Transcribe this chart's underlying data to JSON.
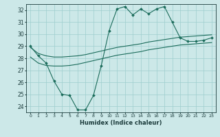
{
  "xlabel": "Humidex (Indice chaleur)",
  "ylabel": "",
  "background_color": "#cce8e8",
  "line_color": "#1a6b5a",
  "xlim": [
    -0.5,
    23.5
  ],
  "ylim": [
    23.5,
    32.5
  ],
  "xticks": [
    0,
    1,
    2,
    3,
    4,
    5,
    6,
    7,
    8,
    9,
    10,
    11,
    12,
    13,
    14,
    15,
    16,
    17,
    18,
    19,
    20,
    21,
    22,
    23
  ],
  "yticks": [
    24,
    25,
    26,
    27,
    28,
    29,
    30,
    31,
    32
  ],
  "line1_x": [
    0,
    1,
    2,
    3,
    4,
    5,
    6,
    7,
    8,
    9,
    10,
    11,
    12,
    13,
    14,
    15,
    16,
    17,
    18,
    19,
    20,
    21,
    22,
    23
  ],
  "line1_y": [
    29.0,
    28.2,
    27.6,
    26.1,
    25.0,
    24.9,
    23.7,
    23.7,
    24.9,
    27.4,
    30.3,
    32.1,
    32.3,
    31.6,
    32.1,
    31.7,
    32.1,
    32.3,
    31.0,
    29.7,
    29.4,
    29.4,
    29.5,
    29.7
  ],
  "line2_x": [
    0,
    1,
    2,
    3,
    4,
    5,
    6,
    7,
    8,
    9,
    10,
    11,
    12,
    13,
    14,
    15,
    16,
    17,
    18,
    19,
    20,
    21,
    22,
    23
  ],
  "line2_y": [
    28.9,
    28.4,
    28.2,
    28.1,
    28.1,
    28.15,
    28.2,
    28.3,
    28.45,
    28.6,
    28.75,
    28.9,
    29.0,
    29.1,
    29.2,
    29.35,
    29.45,
    29.55,
    29.65,
    29.75,
    29.8,
    29.85,
    29.9,
    29.95
  ],
  "line3_x": [
    0,
    1,
    2,
    3,
    4,
    5,
    6,
    7,
    8,
    9,
    10,
    11,
    12,
    13,
    14,
    15,
    16,
    17,
    18,
    19,
    20,
    21,
    22,
    23
  ],
  "line3_y": [
    28.1,
    27.6,
    27.4,
    27.35,
    27.35,
    27.4,
    27.5,
    27.65,
    27.8,
    27.95,
    28.1,
    28.25,
    28.35,
    28.45,
    28.55,
    28.7,
    28.8,
    28.9,
    29.0,
    29.1,
    29.15,
    29.2,
    29.25,
    29.3
  ]
}
